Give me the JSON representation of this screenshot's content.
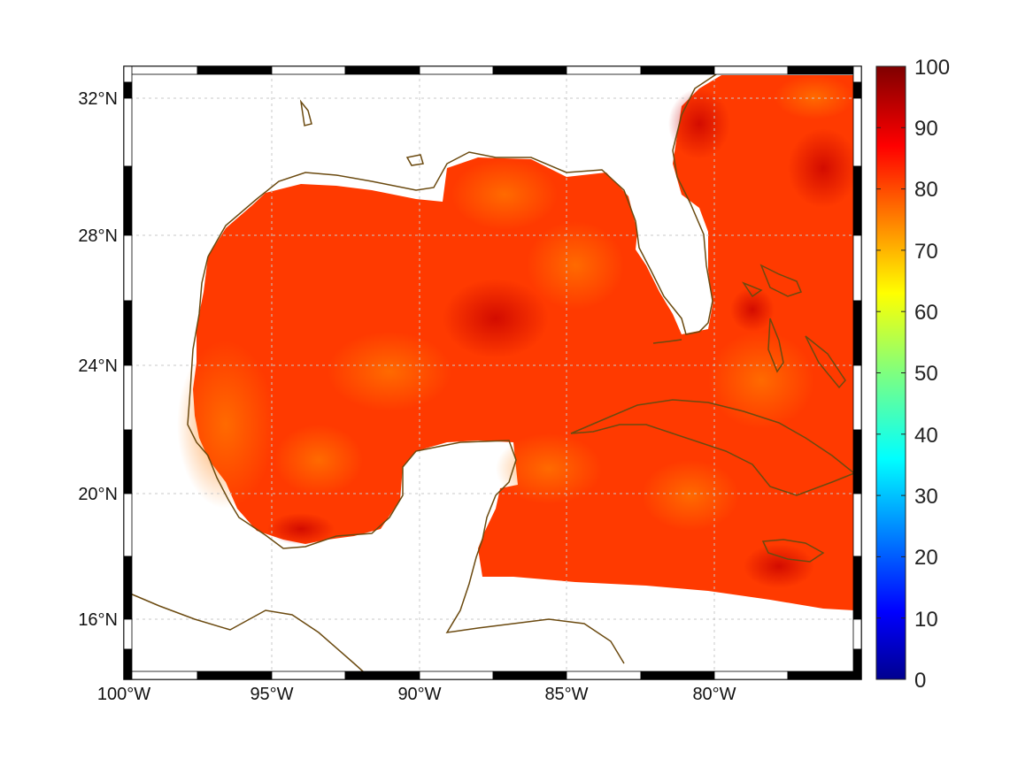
{
  "map": {
    "latitude_labels": [
      "32°N",
      "28°N",
      "24°N",
      "20°N",
      "16°N"
    ],
    "longitude_labels": [
      "100°W",
      "95°W",
      "90°W",
      "85°W",
      "80°W"
    ]
  },
  "colorbar": {
    "labels": [
      "100",
      "90",
      "80",
      "70",
      "60",
      "50",
      "40",
      "30",
      "20",
      "10",
      "0"
    ],
    "range": [
      0,
      100
    ],
    "colormap": "jet"
  },
  "colors": {
    "coastline": "#6b4a10",
    "grid": "#c8c8c8",
    "field_dominant": "#ff3a00"
  }
}
